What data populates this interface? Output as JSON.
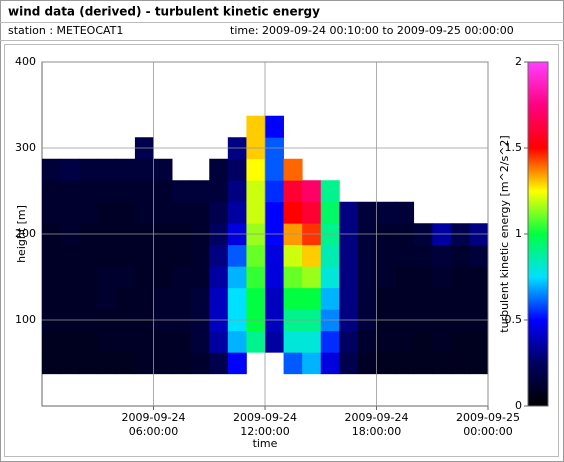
{
  "header": {
    "title": "wind data (derived) - turbulent kinetic energy",
    "station": "station : METEOCAT1",
    "time": "time: 2009-09-24 00:10:00 to 2009-09-25 00:00:00"
  },
  "chart_data": {
    "type": "heatmap",
    "x_label": "time",
    "y_label": "height [m]",
    "colorbar_label": "turbulent kinetic energy [m^2/s^2]",
    "xlim": [
      "2009-09-24 00:00:00",
      "2009-09-25 00:00:00"
    ],
    "xticks": [
      "2009-09-24 06:00:00",
      "2009-09-24 12:00:00",
      "2009-09-24 18:00:00",
      "2009-09-25 00:00:00"
    ],
    "ylim": [
      0,
      400
    ],
    "yticks": [
      100,
      200,
      300,
      400
    ],
    "zlim": [
      0,
      2
    ],
    "zticks": [
      0,
      0.5,
      1,
      1.5,
      2
    ],
    "colormap": [
      "#000000",
      "#000060",
      "#0000ff",
      "#00e0ff",
      "#00ff40",
      "#ffff00",
      "#ff0000",
      "#ff0080",
      "#ff40ff"
    ],
    "grid": true,
    "x": [
      "2009-09-24 00:00:00",
      "2009-09-24 01:00:00",
      "2009-09-24 02:00:00",
      "2009-09-24 03:00:00",
      "2009-09-24 04:00:00",
      "2009-09-24 05:00:00",
      "2009-09-24 06:00:00",
      "2009-09-24 07:00:00",
      "2009-09-24 08:00:00",
      "2009-09-24 09:00:00",
      "2009-09-24 10:00:00",
      "2009-09-24 11:00:00",
      "2009-09-24 12:00:00",
      "2009-09-24 13:00:00",
      "2009-09-24 14:00:00",
      "2009-09-24 15:00:00",
      "2009-09-24 16:00:00",
      "2009-09-24 17:00:00",
      "2009-09-24 18:00:00",
      "2009-09-24 19:00:00",
      "2009-09-24 20:00:00",
      "2009-09-24 21:00:00",
      "2009-09-24 22:00:00",
      "2009-09-24 23:00:00"
    ],
    "y": [
      50,
      75,
      100,
      125,
      150,
      175,
      200,
      225,
      250,
      275,
      300,
      325
    ],
    "z": [
      [
        0.08,
        0.08,
        0.1,
        0.1,
        0.1,
        0.1,
        0.1,
        0.12,
        0.12,
        0.15,
        null,
        null
      ],
      [
        0.08,
        0.08,
        0.1,
        0.1,
        0.1,
        0.1,
        0.12,
        0.12,
        0.12,
        0.18,
        null,
        null
      ],
      [
        0.08,
        0.08,
        0.1,
        0.1,
        0.1,
        0.1,
        0.1,
        0.12,
        0.12,
        0.15,
        null,
        null
      ],
      [
        0.08,
        0.1,
        0.1,
        0.12,
        0.12,
        0.1,
        0.1,
        0.1,
        0.12,
        0.15,
        null,
        null
      ],
      [
        0.08,
        0.1,
        0.1,
        0.1,
        0.12,
        0.1,
        0.1,
        0.1,
        0.12,
        0.15,
        null,
        null
      ],
      [
        0.1,
        0.1,
        0.1,
        0.1,
        0.1,
        0.1,
        0.1,
        0.12,
        0.12,
        0.15,
        0.2,
        null
      ],
      [
        0.1,
        0.1,
        0.12,
        0.12,
        0.1,
        0.1,
        0.1,
        0.12,
        0.12,
        0.15,
        null,
        null
      ],
      [
        0.1,
        0.1,
        0.12,
        0.12,
        0.12,
        0.1,
        0.1,
        0.12,
        0.15,
        null,
        null,
        null
      ],
      [
        0.12,
        0.15,
        0.15,
        0.15,
        0.12,
        0.12,
        0.12,
        0.12,
        0.15,
        null,
        null,
        null
      ],
      [
        0.2,
        0.35,
        0.4,
        0.4,
        0.35,
        0.3,
        0.25,
        0.2,
        0.15,
        0.15,
        null,
        null
      ],
      [
        0.5,
        0.7,
        0.75,
        0.75,
        0.7,
        0.6,
        0.45,
        0.35,
        0.3,
        0.25,
        0.3,
        null
      ],
      [
        null,
        0.9,
        1.0,
        1.0,
        1.05,
        1.1,
        1.15,
        1.2,
        1.2,
        1.25,
        1.3,
        1.3
      ],
      [
        null,
        0.35,
        0.4,
        0.4,
        0.45,
        0.45,
        0.5,
        0.5,
        0.55,
        0.6,
        0.6,
        0.5
      ],
      [
        0.6,
        0.8,
        0.9,
        1.0,
        1.1,
        1.2,
        1.35,
        1.5,
        1.6,
        1.4,
        null,
        null
      ],
      [
        0.7,
        0.8,
        0.9,
        1.0,
        1.15,
        1.3,
        1.45,
        1.6,
        1.7,
        null,
        null,
        null
      ],
      [
        0.45,
        0.55,
        0.65,
        0.7,
        0.8,
        0.85,
        0.9,
        0.95,
        0.9,
        null,
        null,
        null
      ],
      [
        0.2,
        0.25,
        0.3,
        0.3,
        0.3,
        0.3,
        0.3,
        0.3,
        null,
        null,
        null,
        null
      ],
      [
        0.1,
        0.12,
        0.15,
        0.15,
        0.15,
        0.15,
        0.15,
        0.15,
        null,
        null,
        null,
        null
      ],
      [
        0.08,
        0.1,
        0.1,
        0.1,
        0.12,
        0.12,
        0.12,
        0.15,
        null,
        null,
        null,
        null
      ],
      [
        0.08,
        0.1,
        0.1,
        0.1,
        0.1,
        0.12,
        0.12,
        0.15,
        null,
        null,
        null,
        null
      ],
      [
        0.08,
        0.08,
        0.1,
        0.1,
        0.1,
        0.12,
        0.15,
        null,
        null,
        null,
        null,
        null
      ],
      [
        0.08,
        0.1,
        0.1,
        0.1,
        0.12,
        0.15,
        0.35,
        null,
        null,
        null,
        null,
        null
      ],
      [
        0.08,
        0.08,
        0.1,
        0.1,
        0.1,
        0.12,
        0.2,
        null,
        null,
        null,
        null,
        null
      ],
      [
        0.08,
        0.08,
        0.1,
        0.1,
        0.1,
        0.15,
        0.3,
        null,
        null,
        null,
        null,
        null
      ]
    ]
  }
}
